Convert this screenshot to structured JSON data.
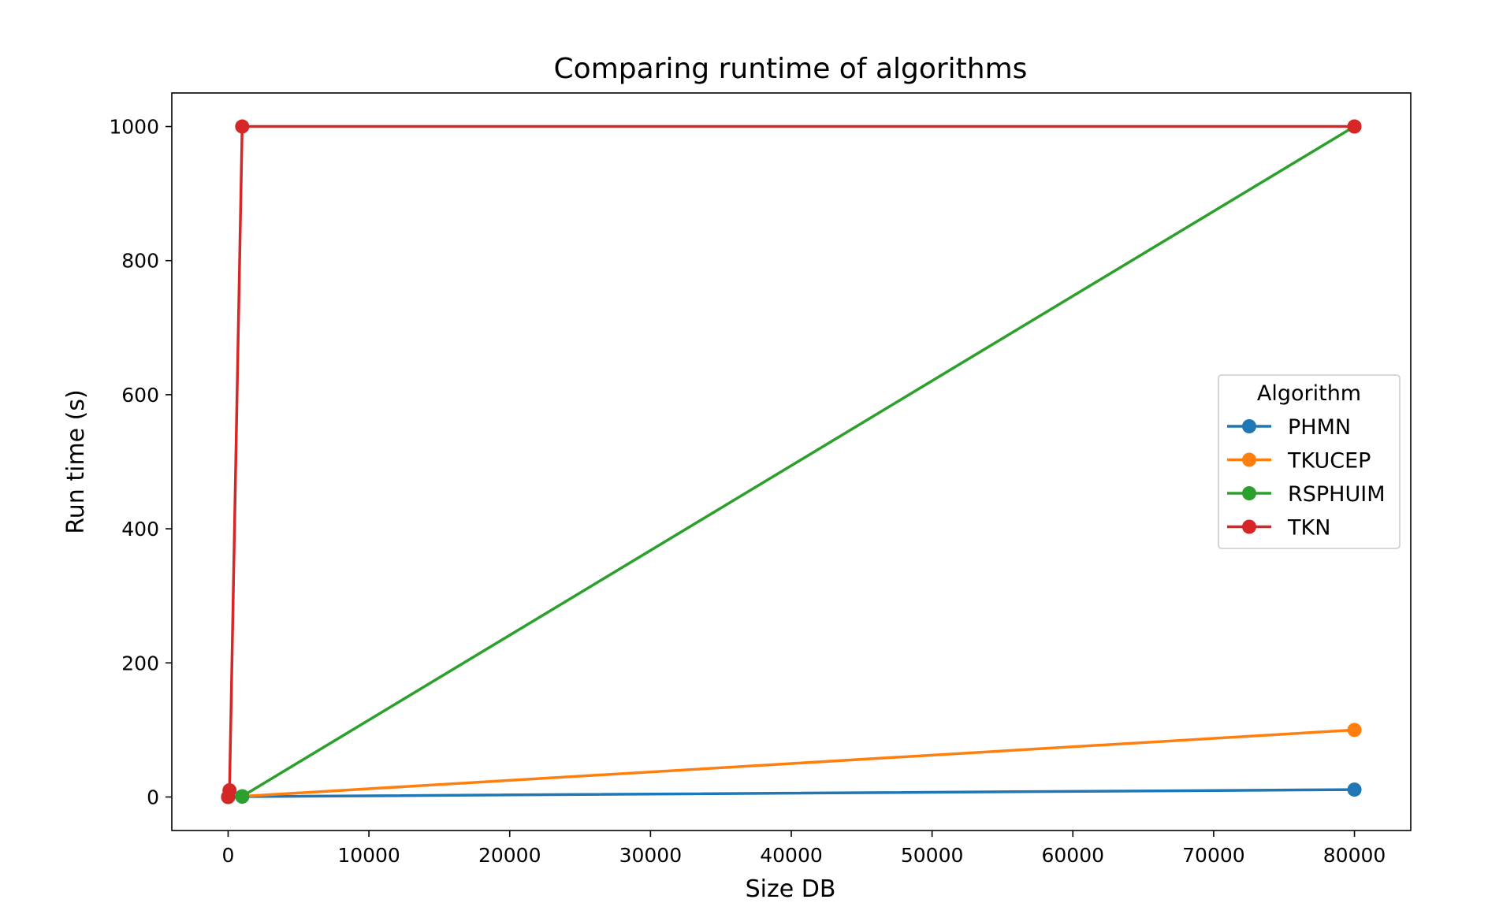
{
  "chart_data": {
    "type": "line",
    "title": "Comparing runtime of algorithms",
    "xlabel": "Size DB",
    "ylabel": "Run time (s)",
    "xlim": [
      -4000,
      84000
    ],
    "ylim": [
      -50,
      1050
    ],
    "xticks": [
      0,
      10000,
      20000,
      30000,
      40000,
      50000,
      60000,
      70000,
      80000
    ],
    "yticks": [
      0,
      200,
      400,
      600,
      800,
      1000
    ],
    "grid": false,
    "legend": {
      "title": "Algorithm",
      "placement": "center-right"
    },
    "series": [
      {
        "name": "PHMN",
        "color": "#1f77b4",
        "x": [
          0,
          1000,
          80000
        ],
        "y": [
          0,
          0.5,
          11
        ]
      },
      {
        "name": "TKUCEP",
        "color": "#ff7f0e",
        "x": [
          0,
          1000,
          80000
        ],
        "y": [
          0,
          1,
          100
        ]
      },
      {
        "name": "RSPHUIM",
        "color": "#2ca02c",
        "x": [
          0,
          1000,
          80000
        ],
        "y": [
          0,
          1,
          1000
        ]
      },
      {
        "name": "TKN",
        "color": "#d62728",
        "x": [
          0,
          100,
          1000,
          80000
        ],
        "y": [
          0,
          10,
          1000,
          1000
        ]
      }
    ]
  }
}
